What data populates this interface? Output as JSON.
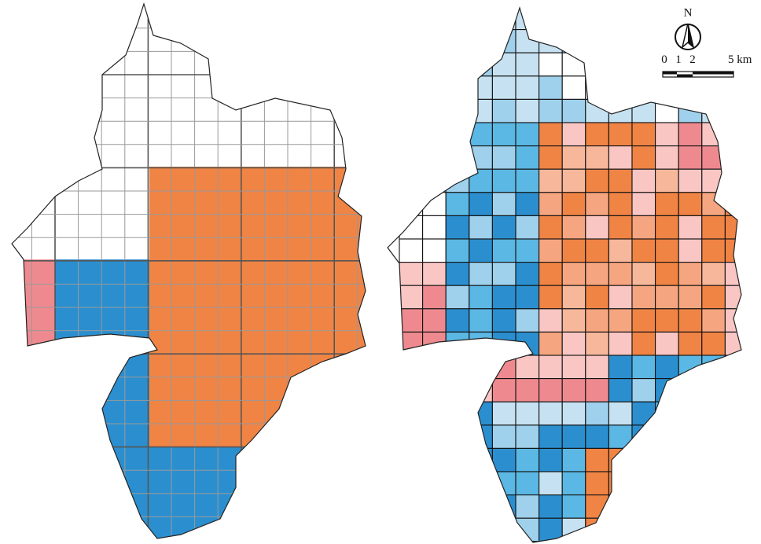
{
  "north_arrow": {
    "label": "N"
  },
  "scale_bar": {
    "labels": [
      "0",
      "1",
      "2",
      "5 km"
    ]
  }
}
